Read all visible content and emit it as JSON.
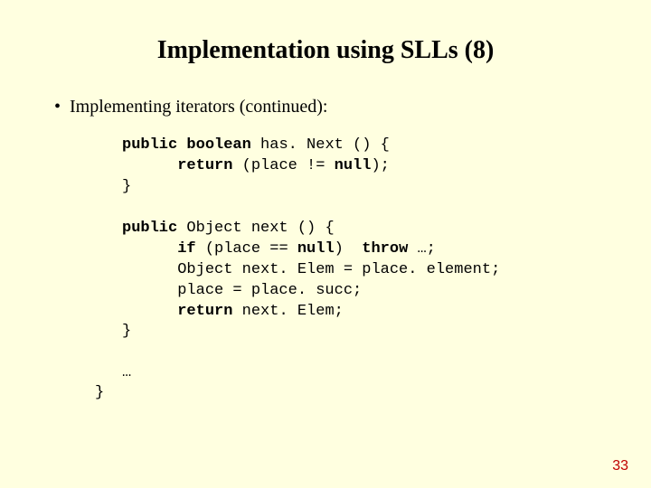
{
  "slide": {
    "title": "Implementation using SLLs (8)",
    "bullet": "Implementing iterators (continued):",
    "code": {
      "l1a": "public",
      "l1b": " ",
      "l1c": "boolean",
      "l1d": " has. Next () {",
      "l2a": "      ",
      "l2b": "return",
      "l2c": " (place != ",
      "l2d": "null",
      "l2e": ");",
      "l3": "}",
      "l4": "",
      "l5a": "public",
      "l5b": " Object next () {",
      "l6a": "      ",
      "l6b": "if",
      "l6c": " (place == ",
      "l6d": "null",
      "l6e": ")  ",
      "l6f": "throw",
      "l6g": " …;",
      "l7": "      Object next. Elem = place. element;",
      "l8": "      place = place. succ;",
      "l9a": "      ",
      "l9b": "return",
      "l9c": " next. Elem;",
      "l10": "}",
      "l11": "",
      "l12": "…"
    },
    "closing_brace": "}",
    "page_number": "33"
  },
  "colors": {
    "background": "#ffffe0",
    "text": "#000000",
    "page_number": "#c00000"
  }
}
